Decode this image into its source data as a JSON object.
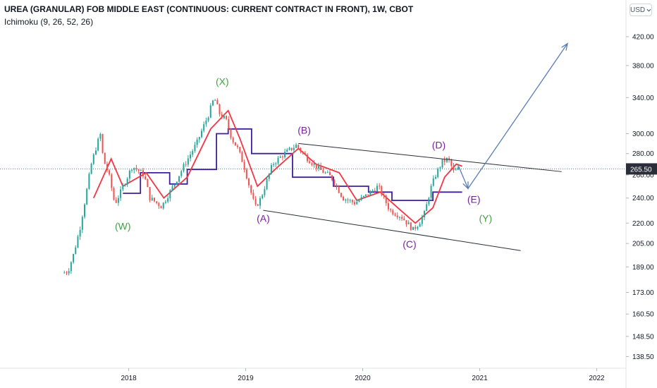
{
  "header": {
    "title": "UREA (GRANULAR) FOB MIDDLE EAST (CONTINUOUS: CURRENT CONTRACT IN FRONT), 1W, CBOT",
    "indicator": "Ichimoku (9, 26, 52, 26)",
    "currency": "USD",
    "currency_icon": "chevron-down-icon"
  },
  "colors": {
    "up": "#26a69a",
    "down": "#ef5350",
    "tenkan": "#f23645",
    "kijun": "#3f1f9b",
    "projection": "#5b7db6",
    "wave_green": "#43a047",
    "wave_purple": "#7b1fa2",
    "price_tag": "#2a2e39"
  },
  "chart_data": {
    "type": "candlestick",
    "y_axis": {
      "scale": "log",
      "ticks": [
        138.5,
        148.5,
        160.5,
        173.0,
        189.0,
        205.0,
        220.0,
        240.0,
        260.0,
        280.0,
        300.0,
        340.0,
        380.0,
        420.0
      ],
      "tick_labels": [
        "138.50",
        "148.50",
        "160.50",
        "173.00",
        "189.00",
        "205.00",
        "220.00",
        "240.00",
        "260.00",
        "280.00",
        "300.00",
        "340.00",
        "380.00",
        "420.00"
      ],
      "range": [
        133,
        470
      ]
    },
    "x_axis": {
      "range": [
        2016.9,
        2022.25
      ],
      "ticks": [
        2018,
        2019,
        2020,
        2021,
        2022
      ],
      "tick_labels": [
        "2018",
        "2019",
        "2020",
        "2021",
        "2022"
      ]
    },
    "last_price": 265.5,
    "last_price_label": "265.50",
    "price_path": [
      [
        2017.45,
        185
      ],
      [
        2017.5,
        186
      ],
      [
        2017.55,
        198
      ],
      [
        2017.6,
        215
      ],
      [
        2017.65,
        240
      ],
      [
        2017.7,
        270
      ],
      [
        2017.75,
        290
      ],
      [
        2017.78,
        300
      ],
      [
        2017.8,
        275
      ],
      [
        2017.85,
        260
      ],
      [
        2017.9,
        235
      ],
      [
        2017.95,
        245
      ],
      [
        2018.05,
        268
      ],
      [
        2018.15,
        260
      ],
      [
        2018.2,
        240
      ],
      [
        2018.3,
        233
      ],
      [
        2018.4,
        250
      ],
      [
        2018.5,
        270
      ],
      [
        2018.6,
        290
      ],
      [
        2018.7,
        320
      ],
      [
        2018.75,
        340
      ],
      [
        2018.8,
        320
      ],
      [
        2018.85,
        315
      ],
      [
        2018.9,
        295
      ],
      [
        2018.95,
        285
      ],
      [
        2019.0,
        270
      ],
      [
        2019.05,
        250
      ],
      [
        2019.1,
        232
      ],
      [
        2019.15,
        240
      ],
      [
        2019.25,
        270
      ],
      [
        2019.35,
        280
      ],
      [
        2019.45,
        288
      ],
      [
        2019.55,
        275
      ],
      [
        2019.65,
        265
      ],
      [
        2019.75,
        258
      ],
      [
        2019.85,
        240
      ],
      [
        2019.95,
        236
      ],
      [
        2020.05,
        242
      ],
      [
        2020.15,
        250
      ],
      [
        2020.25,
        230
      ],
      [
        2020.35,
        225
      ],
      [
        2020.45,
        215
      ],
      [
        2020.5,
        220
      ],
      [
        2020.55,
        228
      ],
      [
        2020.6,
        248
      ],
      [
        2020.65,
        262
      ],
      [
        2020.7,
        272
      ],
      [
        2020.75,
        275
      ],
      [
        2020.8,
        262
      ],
      [
        2020.83,
        265.5
      ]
    ],
    "tenkan": [
      [
        2017.7,
        240
      ],
      [
        2017.85,
        275
      ],
      [
        2017.95,
        250
      ],
      [
        2018.15,
        262
      ],
      [
        2018.3,
        240
      ],
      [
        2018.5,
        258
      ],
      [
        2018.7,
        305
      ],
      [
        2018.85,
        325
      ],
      [
        2018.95,
        295
      ],
      [
        2019.1,
        250
      ],
      [
        2019.25,
        265
      ],
      [
        2019.45,
        285
      ],
      [
        2019.6,
        270
      ],
      [
        2019.8,
        262
      ],
      [
        2019.95,
        238
      ],
      [
        2020.15,
        245
      ],
      [
        2020.3,
        232
      ],
      [
        2020.45,
        220
      ],
      [
        2020.6,
        232
      ],
      [
        2020.7,
        258
      ],
      [
        2020.8,
        270
      ],
      [
        2020.85,
        268
      ]
    ],
    "kijun": [
      [
        2017.95,
        244
      ],
      [
        2018.1,
        244
      ],
      [
        2018.1,
        262
      ],
      [
        2018.35,
        262
      ],
      [
        2018.35,
        252
      ],
      [
        2018.5,
        252
      ],
      [
        2018.5,
        265
      ],
      [
        2018.75,
        265
      ],
      [
        2018.75,
        300
      ],
      [
        2018.85,
        300
      ],
      [
        2018.85,
        305
      ],
      [
        2019.05,
        305
      ],
      [
        2019.05,
        280
      ],
      [
        2019.4,
        280
      ],
      [
        2019.4,
        258
      ],
      [
        2019.75,
        258
      ],
      [
        2019.75,
        250
      ],
      [
        2020.05,
        250
      ],
      [
        2020.05,
        245
      ],
      [
        2020.25,
        245
      ],
      [
        2020.25,
        238
      ],
      [
        2020.6,
        238
      ],
      [
        2020.6,
        245
      ],
      [
        2020.85,
        245
      ]
    ],
    "trendlines": [
      {
        "name": "upper-trendline",
        "points": [
          [
            2019.45,
            290
          ],
          [
            2021.7,
            263
          ]
        ]
      },
      {
        "name": "lower-trendline",
        "points": [
          [
            2019.15,
            230
          ],
          [
            2021.35,
            200
          ]
        ]
      }
    ],
    "projection": [
      [
        2020.82,
        268
      ],
      [
        2020.9,
        248
      ],
      [
        2021.75,
        410
      ]
    ],
    "wave_labels": [
      {
        "text": "(W)",
        "x": 2017.95,
        "y": 215,
        "color": "wave_green"
      },
      {
        "text": "(X)",
        "x": 2018.8,
        "y": 355,
        "color": "wave_green"
      },
      {
        "text": "(A)",
        "x": 2019.15,
        "y": 221,
        "color": "wave_purple"
      },
      {
        "text": "(B)",
        "x": 2019.5,
        "y": 300,
        "color": "wave_purple"
      },
      {
        "text": "(C)",
        "x": 2020.4,
        "y": 202,
        "color": "wave_purple"
      },
      {
        "text": "(D)",
        "x": 2020.65,
        "y": 285,
        "color": "wave_purple"
      },
      {
        "text": "(E)",
        "x": 2020.95,
        "y": 236,
        "color": "wave_purple"
      },
      {
        "text": "(Y)",
        "x": 2021.05,
        "y": 221,
        "color": "wave_green"
      }
    ]
  }
}
